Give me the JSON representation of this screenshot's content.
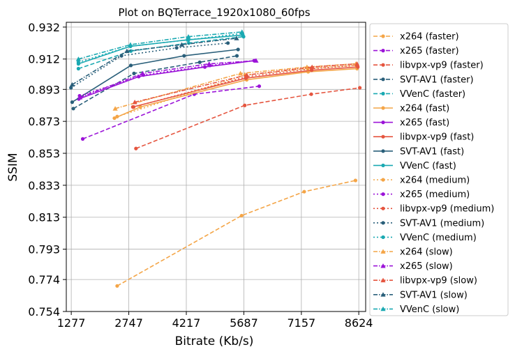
{
  "chart_data": {
    "type": "line",
    "title": "Plot on BQTerrace_1920x1080_60fps",
    "xlabel": "Bitrate (Kb/s)",
    "ylabel": "SSIM",
    "xlim": [
      1150,
      8800
    ],
    "ylim": [
      0.754,
      0.935
    ],
    "xticks": [
      1277,
      2747,
      4217,
      5687,
      7157,
      8624
    ],
    "yticks": [
      0.754,
      0.774,
      0.793,
      0.813,
      0.833,
      0.853,
      0.873,
      0.893,
      0.912,
      0.932
    ],
    "ytick_labels": [
      "0.754",
      "0.774",
      "0.793",
      "0.813",
      "0.833",
      "0.853",
      "0.873",
      "0.893",
      "0.912",
      "0.932"
    ],
    "grid": true,
    "legend_position": "outside-right",
    "series": [
      {
        "name": "x264 (faster)",
        "color": "#f4a547",
        "dash": "6,3",
        "marker": "circle",
        "x": [
          2450,
          5630,
          7230,
          8540
        ],
        "y": [
          0.77,
          0.814,
          0.829,
          0.836
        ]
      },
      {
        "name": "x265 (faster)",
        "color": "#9b13d8",
        "dash": "6,3",
        "marker": "circle",
        "x": [
          1570,
          4420,
          6080
        ],
        "y": [
          0.862,
          0.89,
          0.895
        ]
      },
      {
        "name": "libvpx-vp9 (faster)",
        "color": "#e5553f",
        "dash": "6,3",
        "marker": "circle",
        "x": [
          2930,
          5710,
          7410,
          8650
        ],
        "y": [
          0.856,
          0.883,
          0.89,
          0.894
        ]
      },
      {
        "name": "SVT-AV1 (faster)",
        "color": "#2a5f7a",
        "dash": "6,3",
        "marker": "circle",
        "x": [
          1330,
          2880,
          4560,
          5510
        ],
        "y": [
          0.881,
          0.903,
          0.91,
          0.914
        ]
      },
      {
        "name": "VVenC (faster)",
        "color": "#1aa9b2",
        "dash": "6,3",
        "marker": "circle",
        "x": [
          1460,
          2800,
          4280,
          5680
        ],
        "y": [
          0.906,
          0.917,
          0.922,
          0.926
        ]
      },
      {
        "name": "x264 (fast)",
        "color": "#f4a547",
        "dash": "",
        "marker": "circle",
        "x": [
          2380,
          3040,
          5760,
          7330,
          8580
        ],
        "y": [
          0.875,
          0.882,
          0.899,
          0.904,
          0.906
        ]
      },
      {
        "name": "x265 (fast)",
        "color": "#9b13d8",
        "dash": "",
        "marker": "circle",
        "x": [
          1470,
          3000,
          4690,
          5970
        ],
        "y": [
          0.887,
          0.901,
          0.907,
          0.911
        ]
      },
      {
        "name": "libvpx-vp9 (fast)",
        "color": "#e5553f",
        "dash": "",
        "marker": "circle",
        "x": [
          2850,
          5740,
          7420,
          8600
        ],
        "y": [
          0.882,
          0.9,
          0.905,
          0.907
        ]
      },
      {
        "name": "SVT-AV1 (fast)",
        "color": "#2a5f7a",
        "dash": "",
        "marker": "circle",
        "x": [
          1300,
          2800,
          4160,
          5540
        ],
        "y": [
          0.885,
          0.908,
          0.914,
          0.918
        ]
      },
      {
        "name": "VVenC (fast)",
        "color": "#1aa9b2",
        "dash": "",
        "marker": "circle",
        "x": [
          1460,
          2790,
          4250,
          5660
        ],
        "y": [
          0.909,
          0.92,
          0.924,
          0.927
        ]
      },
      {
        "name": "x264 (medium)",
        "color": "#f4a547",
        "dash": "2,3",
        "marker": "circle",
        "x": [
          2450,
          5720,
          7320,
          8560
        ],
        "y": [
          0.876,
          0.902,
          0.906,
          0.908
        ]
      },
      {
        "name": "x265 (medium)",
        "color": "#9b13d8",
        "dash": "2,3",
        "marker": "circle",
        "x": [
          1490,
          3120,
          4820,
          5950
        ],
        "y": [
          0.889,
          0.902,
          0.908,
          0.911
        ]
      },
      {
        "name": "libvpx-vp9 (medium)",
        "color": "#e5553f",
        "dash": "2,3",
        "marker": "circle",
        "x": [
          2870,
          5760,
          7420,
          8580
        ],
        "y": [
          0.882,
          0.901,
          0.906,
          0.908
        ]
      },
      {
        "name": "SVT-AV1 (medium)",
        "color": "#2a5f7a",
        "dash": "2,3",
        "marker": "circle",
        "x": [
          1270,
          2560,
          3970,
          5280
        ],
        "y": [
          0.894,
          0.914,
          0.919,
          0.922
        ]
      },
      {
        "name": "VVenC (medium)",
        "color": "#1aa9b2",
        "dash": "2,3",
        "marker": "circle",
        "x": [
          1460,
          2790,
          4270,
          5640
        ],
        "y": [
          0.91,
          0.92,
          0.924,
          0.928
        ]
      },
      {
        "name": "x264 (slow)",
        "color": "#f4a547",
        "dash": "6,2,1.5,2",
        "marker": "triangle",
        "x": [
          2400,
          5600,
          7300,
          8550
        ],
        "y": [
          0.881,
          0.903,
          0.907,
          0.909
        ]
      },
      {
        "name": "x265 (slow)",
        "color": "#9b13d8",
        "dash": "6,2,1.5,2",
        "marker": "triangle",
        "x": [
          1500,
          3100,
          4800,
          6000
        ],
        "y": [
          0.888,
          0.903,
          0.909,
          0.911
        ]
      },
      {
        "name": "libvpx-vp9 (slow)",
        "color": "#e5553f",
        "dash": "6,2,1.5,2",
        "marker": "triangle",
        "x": [
          2900,
          5760,
          7430,
          8580
        ],
        "y": [
          0.885,
          0.902,
          0.907,
          0.909
        ]
      },
      {
        "name": "SVT-AV1 (slow)",
        "color": "#2a5f7a",
        "dash": "6,2,1.5,2",
        "marker": "triangle",
        "x": [
          1300,
          2700,
          4100,
          5500
        ],
        "y": [
          0.896,
          0.917,
          0.921,
          0.925
        ]
      },
      {
        "name": "VVenC (slow)",
        "color": "#1aa9b2",
        "dash": "6,2,1.5,2",
        "marker": "triangle",
        "x": [
          1460,
          2790,
          4270,
          5640
        ],
        "y": [
          0.912,
          0.921,
          0.926,
          0.929
        ]
      }
    ]
  }
}
